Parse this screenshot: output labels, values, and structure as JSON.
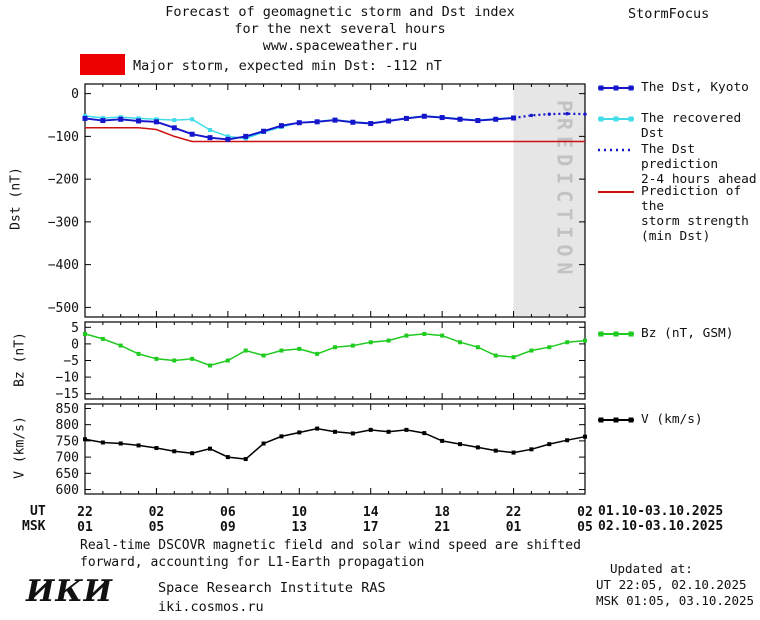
{
  "header": {
    "title_line1": "Forecast of geomagnetic storm and Dst index",
    "title_line2": "for the next several hours",
    "title_line3": "www.spaceweather.ru",
    "brand": "StormFocus"
  },
  "alert": {
    "label": "Major storm, expected min Dst: -112 nT",
    "color": "#ee0000"
  },
  "prediction_watermark": "PREDICTION",
  "axis": {
    "ut_label": "UT",
    "msk_label": "MSK",
    "ut_ticks": [
      "22",
      "02",
      "06",
      "10",
      "14",
      "18",
      "22",
      "02"
    ],
    "msk_ticks": [
      "01",
      "05",
      "09",
      "13",
      "17",
      "21",
      "01",
      "05"
    ],
    "ut_range": "01.10-03.10.2025",
    "msk_range": "02.10-03.10.2025"
  },
  "legend": [
    {
      "lines": [
        "The Dst, Kyoto"
      ],
      "color": "#1515cc",
      "style": "solid",
      "marker": "square"
    },
    {
      "lines": [
        "The recovered Dst"
      ],
      "color": "#40dce8",
      "style": "solid",
      "marker": "square"
    },
    {
      "lines": [
        "The Dst prediction",
        "2-4 hours ahead"
      ],
      "color": "#1515cc",
      "style": "dotted",
      "marker": "dot"
    },
    {
      "lines": [
        "Prediction of the",
        "storm strength",
        "(min Dst)"
      ],
      "color": "#cc1111",
      "style": "solid",
      "marker": "none"
    },
    {
      "lines": [
        "Bz (nT, GSM)"
      ],
      "color": "#1ecb1e",
      "style": "solid",
      "marker": "square"
    },
    {
      "lines": [
        "V (km/s)"
      ],
      "color": "#000000",
      "style": "solid",
      "marker": "square"
    }
  ],
  "footer": {
    "note_line1": "Real-time DSCOVR magnetic field and solar wind speed are shifted",
    "note_line2": "forward, accounting for L1-Earth propagation",
    "logo": "ИКИ",
    "institute": "Space Research Institute RAS",
    "site": "iki.cosmos.ru",
    "updated_label": "Updated at:",
    "updated_ut": "UT  22:05, 02.10.2025",
    "updated_msk": "MSK 01:05, 03.10.2025"
  },
  "chart_data": [
    {
      "type": "line",
      "title": "Dst index, observed and predicted",
      "ylabel": "Dst (nT)",
      "ylim": [
        -500,
        0
      ],
      "yticks": [
        0,
        -100,
        -200,
        -300,
        -400,
        -500
      ],
      "xlim": [
        0,
        28
      ],
      "x_hours_ut": [
        22,
        23,
        0,
        1,
        2,
        3,
        4,
        5,
        6,
        7,
        8,
        9,
        10,
        11,
        12,
        13,
        14,
        15,
        16,
        17,
        18,
        19,
        20,
        21,
        22,
        23,
        0,
        1,
        2
      ],
      "prediction_zone_x": [
        24,
        28
      ],
      "series": [
        {
          "name": "The Dst, Kyoto",
          "color": "#1515cc",
          "style": "solid",
          "marker": "square",
          "values": [
            -58,
            -63,
            -60,
            -64,
            -66,
            -80,
            -95,
            -103,
            -107,
            -100,
            -88,
            -75,
            -68,
            -66,
            -62,
            -67,
            -70,
            -64,
            -58,
            -53,
            -56,
            -60,
            -63,
            -60,
            -57,
            null,
            null,
            null,
            null
          ]
        },
        {
          "name": "The recovered Dst",
          "color": "#40dce8",
          "style": "solid",
          "marker": "square",
          "values": [
            -52,
            -57,
            -55,
            -58,
            -60,
            -62,
            -60,
            -85,
            -100,
            -105,
            -90,
            -78,
            -68,
            -65,
            -61,
            -66,
            -69,
            -63,
            -57,
            -52,
            -55,
            -59,
            -62,
            -59,
            -56,
            null,
            null,
            null,
            null
          ]
        },
        {
          "name": "The Dst prediction 2-4 hours ahead",
          "color": "#1515cc",
          "style": "dotted",
          "marker": "dot",
          "values": [
            null,
            null,
            null,
            null,
            null,
            null,
            null,
            null,
            null,
            null,
            null,
            null,
            null,
            null,
            null,
            null,
            null,
            null,
            null,
            null,
            null,
            null,
            null,
            null,
            -57,
            -51,
            -48,
            -47,
            -48
          ]
        },
        {
          "name": "Prediction of the storm strength (min Dst)",
          "color": "#cc1111",
          "style": "solid",
          "marker": "none",
          "values": [
            -80,
            -80,
            -80,
            -80,
            -84,
            -100,
            -112,
            -112,
            -112,
            -112,
            -112,
            -112,
            -112,
            -112,
            -112,
            -112,
            -112,
            -112,
            -112,
            -112,
            -112,
            -112,
            -112,
            -112,
            -112,
            -112,
            -112,
            -112,
            -112
          ]
        }
      ]
    },
    {
      "type": "line",
      "title": "Bz GSM component",
      "ylabel": "Bz (nT)",
      "ylim": [
        -15,
        5
      ],
      "yticks": [
        5,
        0,
        -5,
        -10,
        -15
      ],
      "xlim": [
        0,
        28
      ],
      "series": [
        {
          "name": "Bz (nT, GSM)",
          "color": "#1ecb1e",
          "style": "solid",
          "marker": "square",
          "values": [
            3,
            1.5,
            -0.5,
            -3,
            -4.5,
            -5,
            -4.5,
            -6.5,
            -5,
            -2,
            -3.5,
            -2,
            -1.5,
            -3,
            -1,
            -0.5,
            0.5,
            1,
            2.5,
            3,
            2.5,
            0.5,
            -1,
            -3.5,
            -4,
            -2,
            -1,
            0.5,
            1
          ]
        }
      ]
    },
    {
      "type": "line",
      "title": "Solar wind speed",
      "ylabel": "V (km/s)",
      "ylim": [
        600,
        850
      ],
      "yticks": [
        850,
        800,
        750,
        700,
        650,
        600
      ],
      "xlim": [
        0,
        28
      ],
      "series": [
        {
          "name": "V (km/s)",
          "color": "#000000",
          "style": "solid",
          "marker": "square",
          "values": [
            755,
            745,
            742,
            736,
            728,
            718,
            712,
            726,
            700,
            694,
            742,
            764,
            776,
            788,
            778,
            773,
            784,
            778,
            784,
            774,
            750,
            740,
            730,
            720,
            714,
            724,
            740,
            752,
            763
          ]
        }
      ]
    }
  ]
}
